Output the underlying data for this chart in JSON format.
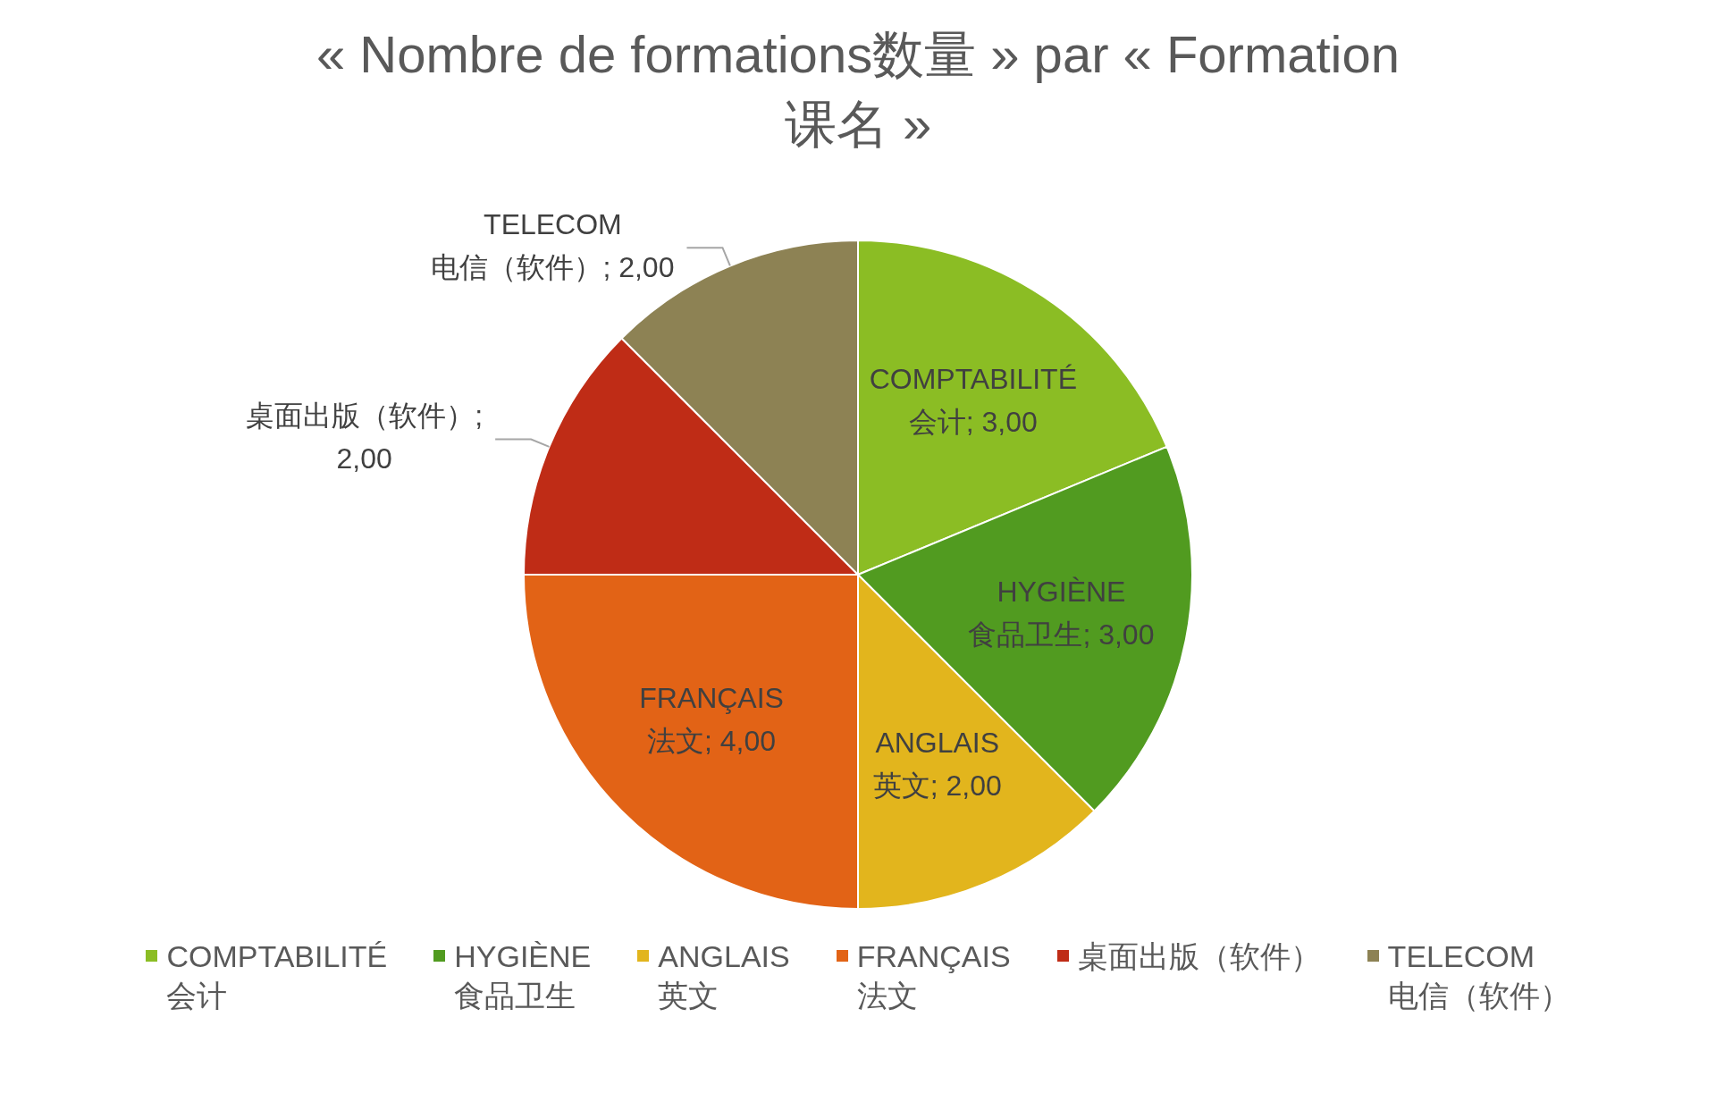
{
  "chart_data": {
    "type": "pie",
    "title": "« Nombre de formations数量 » par « Formation 课名 »",
    "categories": [
      "COMPTABILITÉ\n会计",
      "HYGIÈNE\n食品卫生",
      "ANGLAIS\n英文",
      "FRANÇAIS\n法文",
      "桌面出版（软件）",
      "TELECOM\n电信（软件）"
    ],
    "values": [
      3,
      3,
      2,
      4,
      2,
      2
    ],
    "colors": [
      "#8bbd24",
      "#519b20",
      "#e2b51d",
      "#e26316",
      "#bf2c16",
      "#8d8254"
    ],
    "value_labels": [
      "COMPTABILITÉ\n会计; 3,00",
      "HYGIÈNE\n食品卫生; 3,00",
      "ANGLAIS\n英文; 2,00",
      "FRANÇAIS\n法文; 4,00",
      "桌面出版（软件）;\n2,00",
      "TELECOM\n电信（软件）; 2,00"
    ],
    "legend": "bottom"
  }
}
